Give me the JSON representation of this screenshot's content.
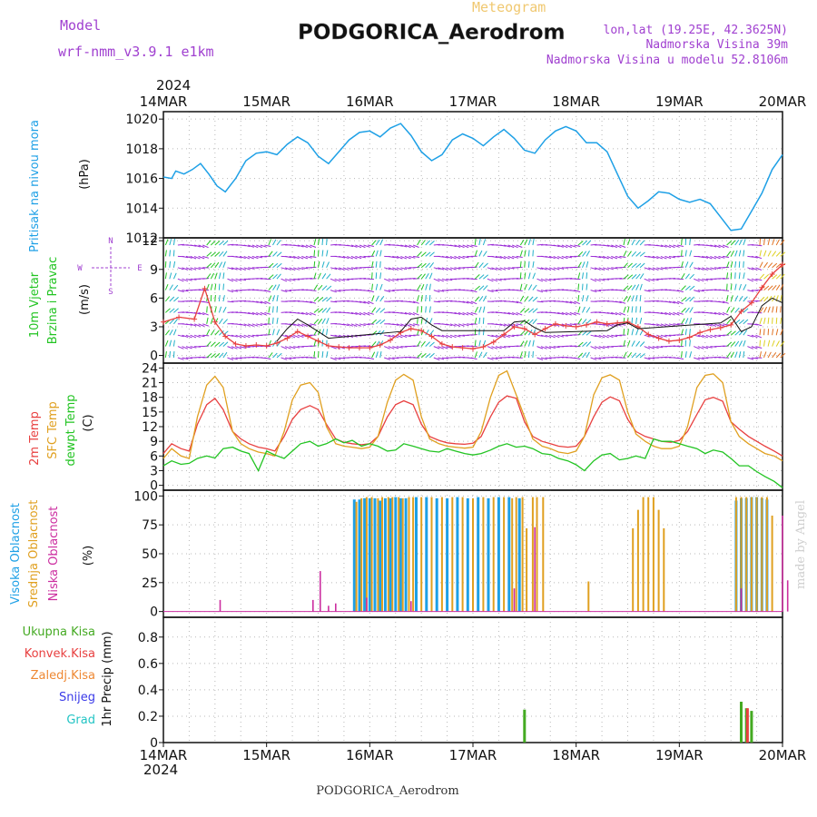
{
  "header": {
    "model_label": "Model",
    "model_name": "wrf-nmm_v3.9.1  e1km",
    "meteogram_label": "Meteogram",
    "station_title": "PODGORICA_Aerodrom",
    "lonlat": "lon,lat (19.25E, 42.3625N)",
    "elevation": "Nadmorska Visina 39m",
    "model_elevation": "Nadmorska Visina u modelu 52.8106m",
    "watermark": "made by Angel"
  },
  "footer": {
    "station_name": "PODGORICA_Aerodrom"
  },
  "colors": {
    "pressure": "#1ea0e6",
    "wind_green": "#22c422",
    "wind_purple": "#9a2bd6",
    "wind_cyan": "#20b0c8",
    "temp_2m": "#e84040",
    "temp_sfc": "#e0a020",
    "dewpoint": "#22c422",
    "cloud_high": "#1ea0e6",
    "cloud_mid": "#e0a020",
    "cloud_low": "#cc2ea0",
    "precip_total": "#44aa22",
    "precip_conv": "#e84040",
    "precip_frozen": "#ee8833",
    "snow": "#3a3ae8",
    "hail": "#22c4c4",
    "label_purple": "#a040d0"
  },
  "chart_data": [
    {
      "type": "line",
      "panel": "pressure",
      "ylabel_left": "Pritisak na nivou mora",
      "ylabel_unit": "(hPa)",
      "year": "2024",
      "x_ticks": [
        "14MAR",
        "15MAR",
        "16MAR",
        "17MAR",
        "18MAR",
        "19MAR",
        "20MAR"
      ],
      "ylim": [
        1012,
        1020.5
      ],
      "y_ticks": [
        "1012",
        "1014",
        "1016",
        "1018",
        "1020"
      ],
      "grid": true,
      "x_days": [
        0,
        0.08,
        0.12,
        0.2,
        0.28,
        0.36,
        0.44,
        0.52,
        0.6,
        0.7,
        0.8,
        0.9,
        1.0,
        1.1,
        1.2,
        1.3,
        1.4,
        1.5,
        1.6,
        1.7,
        1.8,
        1.9,
        2.0,
        2.1,
        2.2,
        2.3,
        2.4,
        2.5,
        2.6,
        2.7,
        2.8,
        2.9,
        3.0,
        3.1,
        3.2,
        3.3,
        3.4,
        3.5,
        3.6,
        3.7,
        3.8,
        3.9,
        4.0,
        4.1,
        4.2,
        4.3,
        4.4,
        4.5,
        4.6,
        4.7,
        4.8,
        4.9,
        5.0,
        5.1,
        5.2,
        5.3,
        5.4,
        5.5,
        5.6,
        5.7,
        5.8,
        5.9,
        6.0
      ],
      "values": [
        1016.1,
        1016.0,
        1016.5,
        1016.3,
        1016.6,
        1017.0,
        1016.3,
        1015.5,
        1015.1,
        1016.0,
        1017.2,
        1017.7,
        1017.8,
        1017.6,
        1018.3,
        1018.8,
        1018.4,
        1017.5,
        1017.0,
        1017.8,
        1018.6,
        1019.1,
        1019.2,
        1018.8,
        1019.4,
        1019.7,
        1018.9,
        1017.8,
        1017.2,
        1017.6,
        1018.6,
        1019.0,
        1018.7,
        1018.2,
        1018.8,
        1019.3,
        1018.7,
        1017.9,
        1017.7,
        1018.6,
        1019.2,
        1019.5,
        1019.2,
        1018.4,
        1018.4,
        1017.8,
        1016.3,
        1014.8,
        1014.0,
        1014.5,
        1015.1,
        1015.0,
        1014.6,
        1014.4,
        1014.6,
        1014.3,
        1013.4,
        1012.5,
        1012.6,
        1013.8,
        1015.0,
        1016.6,
        1017.6
      ]
    },
    {
      "type": "line",
      "panel": "wind",
      "ylabel_left_1": "10m Vjetar",
      "ylabel_left_2": "Brzina i Pravac",
      "ylabel_unit": "(m/s)",
      "compass": [
        "N",
        "E",
        "W",
        "S"
      ],
      "ylim": [
        -0.8,
        12.3
      ],
      "y_ticks": [
        "0",
        "3",
        "6",
        "9",
        "12"
      ],
      "grid": true,
      "series": [
        {
          "name": "",
          "color": "#e84040",
          "x_days": [
            0,
            0.15,
            0.3,
            0.4,
            0.5,
            0.6,
            0.7,
            0.8,
            0.9,
            1.0,
            1.1,
            1.2,
            1.3,
            1.4,
            1.5,
            1.6,
            1.7,
            1.8,
            1.9,
            2.0,
            2.1,
            2.2,
            2.3,
            2.4,
            2.5,
            2.6,
            2.7,
            2.8,
            2.9,
            3.0,
            3.1,
            3.2,
            3.3,
            3.4,
            3.5,
            3.6,
            3.7,
            3.8,
            3.9,
            4.0,
            4.1,
            4.2,
            4.3,
            4.4,
            4.5,
            4.6,
            4.7,
            4.8,
            4.9,
            5.0,
            5.1,
            5.2,
            5.3,
            5.4,
            5.5,
            5.6,
            5.7,
            5.8,
            5.9,
            6.0
          ],
          "values": [
            3.5,
            4.0,
            3.8,
            7.0,
            3.5,
            2.0,
            1.2,
            1.0,
            1.1,
            1.0,
            1.3,
            1.8,
            2.5,
            2.0,
            1.5,
            1.0,
            0.9,
            0.8,
            0.8,
            0.8,
            1.1,
            1.6,
            2.4,
            2.8,
            2.6,
            2.0,
            1.2,
            0.9,
            0.8,
            0.7,
            0.9,
            1.4,
            2.2,
            3.0,
            2.8,
            2.2,
            2.8,
            3.3,
            3.1,
            3.0,
            3.2,
            3.5,
            3.3,
            3.4,
            3.5,
            3.0,
            2.2,
            1.8,
            1.5,
            1.6,
            1.9,
            2.4,
            2.7,
            2.9,
            3.2,
            4.6,
            5.5,
            7.1,
            8.5,
            9.5
          ]
        },
        {
          "name": "",
          "color": "#111111",
          "x_days": [
            1.1,
            1.2,
            1.3,
            1.4,
            1.5,
            1.6,
            2.3,
            2.4,
            2.5,
            2.6,
            2.7,
            3.3,
            3.4,
            3.5,
            3.6,
            3.7,
            4.3,
            4.4,
            4.5,
            4.6,
            5.4,
            5.5,
            5.6,
            5.7,
            5.8,
            5.9,
            6.0
          ],
          "values": [
            1.5,
            2.8,
            3.8,
            3.2,
            2.5,
            1.8,
            2.5,
            3.8,
            4.0,
            3.2,
            2.6,
            2.6,
            3.5,
            3.6,
            2.9,
            2.4,
            2.6,
            3.2,
            3.4,
            2.8,
            3.4,
            4.1,
            2.5,
            3.0,
            5.2,
            6.0,
            5.5
          ]
        }
      ]
    },
    {
      "type": "line",
      "panel": "temperature",
      "ylabel_left_1": "2m Temp",
      "ylabel_left_2": "SFC Temp",
      "ylabel_left_3": "dewpt Temp",
      "ylabel_unit": "(C)",
      "ylim": [
        -1,
        25
      ],
      "y_ticks": [
        "0",
        "3",
        "6",
        "9",
        "12",
        "15",
        "18",
        "21",
        "24"
      ],
      "grid": true,
      "x_days": [
        0,
        0.08,
        0.17,
        0.25,
        0.33,
        0.42,
        0.5,
        0.58,
        0.67,
        0.75,
        0.83,
        0.92,
        1.0,
        1.08,
        1.17,
        1.25,
        1.33,
        1.42,
        1.5,
        1.58,
        1.67,
        1.75,
        1.83,
        1.92,
        2.0,
        2.08,
        2.17,
        2.25,
        2.33,
        2.42,
        2.5,
        2.58,
        2.67,
        2.75,
        2.83,
        2.92,
        3.0,
        3.08,
        3.17,
        3.25,
        3.33,
        3.42,
        3.5,
        3.58,
        3.67,
        3.75,
        3.83,
        3.92,
        4.0,
        4.08,
        4.17,
        4.25,
        4.33,
        4.42,
        4.5,
        4.58,
        4.67,
        4.75,
        4.83,
        4.92,
        5.0,
        5.08,
        5.17,
        5.25,
        5.33,
        5.42,
        5.5,
        5.58,
        5.67,
        5.75,
        5.83,
        5.92,
        6.0
      ],
      "series": [
        {
          "name": "",
          "color": "#e84040",
          "values": [
            6.5,
            8.5,
            7.5,
            7.0,
            12.5,
            16.5,
            17.8,
            15.5,
            11.0,
            9.5,
            8.5,
            7.8,
            7.5,
            7.0,
            10.0,
            13.5,
            15.5,
            16.3,
            15.5,
            12.5,
            9.5,
            8.8,
            8.5,
            8.3,
            8.5,
            10.0,
            14.0,
            16.5,
            17.3,
            16.5,
            12.5,
            10.0,
            9.2,
            8.7,
            8.5,
            8.4,
            8.6,
            10.0,
            14.0,
            17.0,
            18.3,
            17.8,
            13.0,
            10.0,
            9.0,
            8.5,
            8.0,
            7.8,
            8.0,
            10.0,
            14.0,
            17.0,
            18.1,
            17.3,
            13.5,
            11.0,
            10.0,
            9.5,
            9.0,
            8.8,
            9.2,
            11.0,
            14.5,
            17.5,
            18.0,
            17.2,
            13.0,
            11.5,
            10.0,
            9.0,
            8.0,
            7.0,
            6.0
          ]
        },
        {
          "name": "",
          "color": "#e0a020",
          "values": [
            5.5,
            7.5,
            6.0,
            5.5,
            14.0,
            20.5,
            22.3,
            20.0,
            11.0,
            8.5,
            7.5,
            6.8,
            6.5,
            6.0,
            11.0,
            17.5,
            20.5,
            21.0,
            19.0,
            12.0,
            8.5,
            8.0,
            7.8,
            7.5,
            7.8,
            10.0,
            17.0,
            21.5,
            22.7,
            21.5,
            14.0,
            9.5,
            8.5,
            8.0,
            7.8,
            7.6,
            7.8,
            11.0,
            18.0,
            22.5,
            23.4,
            18.5,
            14.0,
            9.5,
            8.0,
            7.5,
            6.8,
            6.5,
            7.0,
            10.0,
            18.5,
            22.0,
            22.6,
            21.5,
            15.0,
            10.5,
            9.0,
            8.0,
            7.5,
            7.5,
            8.0,
            12.0,
            20.0,
            22.5,
            22.8,
            21.0,
            13.0,
            10.0,
            8.5,
            7.5,
            6.5,
            6.0,
            5.0
          ]
        },
        {
          "name": "",
          "color": "#22c422",
          "values": [
            4.0,
            5.0,
            4.3,
            4.5,
            5.5,
            6.0,
            5.6,
            7.5,
            7.8,
            7.0,
            6.5,
            3.0,
            7.0,
            6.2,
            5.5,
            7.0,
            8.5,
            9.0,
            8.0,
            8.5,
            9.5,
            8.7,
            9.2,
            8.0,
            8.5,
            8.0,
            7.0,
            7.2,
            8.5,
            8.0,
            7.5,
            7.0,
            6.8,
            7.5,
            7.0,
            6.5,
            6.2,
            6.5,
            7.2,
            8.0,
            8.5,
            7.8,
            8.0,
            7.5,
            6.5,
            6.3,
            5.5,
            5.0,
            4.2,
            3.0,
            5.0,
            6.2,
            6.5,
            5.2,
            5.5,
            6.0,
            5.5,
            9.5,
            9.0,
            9.0,
            8.5,
            8.0,
            7.5,
            6.5,
            7.2,
            6.8,
            5.5,
            4.0,
            4.0,
            2.8,
            1.8,
            0.8,
            -0.5
          ]
        }
      ]
    },
    {
      "type": "bar",
      "panel": "cloud_cover",
      "ylabel_left_1": "Visoka Oblacnost",
      "ylabel_left_2": "Srednja Oblacnost",
      "ylabel_left_3": "Niska Oblacnost",
      "ylabel_unit": "(%)",
      "ylim": [
        -5,
        105
      ],
      "y_ticks": [
        "0",
        "25",
        "50",
        "75",
        "100"
      ],
      "grid": true,
      "bars": [
        {
          "layer": "high",
          "x_days": [
            1.85,
            1.9,
            1.95,
            2.0,
            2.05,
            2.1,
            2.15,
            2.2,
            2.25,
            2.3,
            2.35,
            2.45,
            2.55,
            2.65,
            2.75,
            2.85,
            2.95,
            3.05,
            3.15,
            3.25,
            3.35,
            3.45,
            5.55,
            5.6,
            5.65,
            5.7,
            5.75,
            5.8,
            5.85
          ],
          "values": [
            97,
            97,
            98,
            98,
            98,
            96,
            98,
            98,
            99,
            98,
            98,
            99,
            99,
            98,
            98,
            99,
            98,
            99,
            98,
            99,
            99,
            98,
            96,
            98,
            98,
            99,
            99,
            98,
            97
          ]
        },
        {
          "layer": "mid",
          "x_days": [
            1.87,
            1.92,
            1.97,
            2.02,
            2.08,
            2.12,
            2.18,
            2.22,
            2.28,
            2.32,
            2.38,
            2.42,
            2.5,
            2.6,
            2.7,
            2.8,
            2.9,
            3.0,
            3.1,
            3.2,
            3.3,
            3.38,
            3.42,
            3.48,
            3.52,
            3.58,
            3.62,
            3.68,
            4.12,
            4.55,
            4.6,
            4.65,
            4.7,
            4.75,
            4.8,
            4.85,
            5.55,
            5.6,
            5.65,
            5.7,
            5.75,
            5.8,
            5.85,
            5.9
          ],
          "values": [
            95,
            98,
            99,
            99,
            98,
            99,
            99,
            99,
            99,
            98,
            99,
            99,
            99,
            99,
            99,
            99,
            99,
            98,
            99,
            99,
            99,
            98,
            99,
            99,
            72,
            99,
            99,
            99,
            26,
            72,
            88,
            99,
            99,
            99,
            88,
            72,
            99,
            99,
            99,
            99,
            99,
            99,
            99,
            83
          ]
        },
        {
          "layer": "low",
          "x_days": [
            0.55,
            1.45,
            1.52,
            1.6,
            1.67,
            1.97,
            2.4,
            3.4,
            3.6,
            5.6,
            6.0,
            6.05
          ],
          "values": [
            10,
            10,
            35,
            5,
            7,
            12,
            9,
            20,
            73,
            20,
            83,
            27
          ]
        }
      ]
    },
    {
      "type": "bar",
      "panel": "precipitation",
      "legend": [
        "Ukupna Kisa",
        "Konvek.Kisa",
        "Zaledj.Kisa",
        "Snijeg",
        "Grad"
      ],
      "ylabel_unit": "1hr Precip (mm)",
      "ylim": [
        0,
        0.95
      ],
      "y_ticks": [
        "0",
        "0.2",
        "0.4",
        "0.6",
        "0.8"
      ],
      "grid": true,
      "bars": [
        {
          "name": "Ukupna Kisa",
          "x_days": [
            3.5,
            5.6,
            5.65,
            5.7
          ],
          "values": [
            0.25,
            0.31,
            0.26,
            0.24
          ]
        },
        {
          "name": "Konvek.Kisa",
          "x_days": [
            5.66
          ],
          "values": [
            0.26
          ]
        }
      ],
      "x_ticks": [
        "14MAR",
        "15MAR",
        "16MAR",
        "17MAR",
        "18MAR",
        "19MAR",
        "20MAR"
      ],
      "year": "2024"
    }
  ]
}
